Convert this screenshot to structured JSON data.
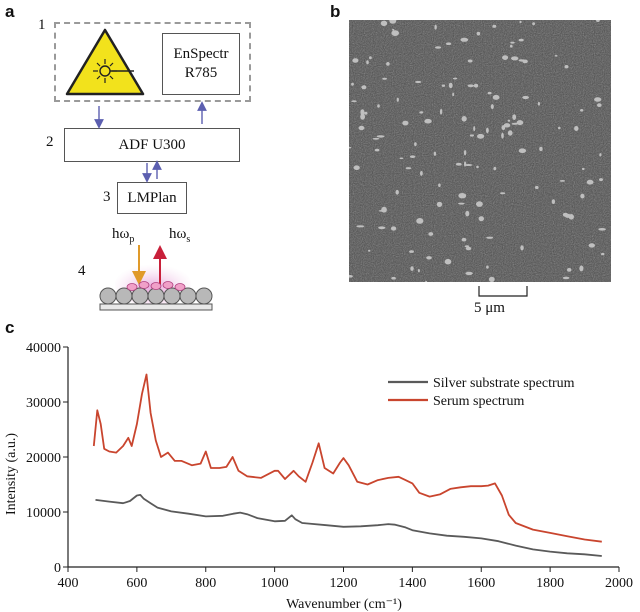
{
  "panels": {
    "a": "a",
    "b": "b",
    "c": "c"
  },
  "schematic": {
    "step_numbers": [
      "1",
      "2",
      "3",
      "4"
    ],
    "spectrometer_label": "EnSpectr\nR785",
    "adf_label": "ADF U300",
    "objective_label": "LMPlan",
    "photon_in": "hω",
    "photon_in_sub": "p",
    "photon_out": "hω",
    "photon_out_sub": "s",
    "laser_icon": "laser-warning-icon"
  },
  "micrograph": {
    "scale_bar_label": "5 μm"
  },
  "colors": {
    "silver": "#5a5a5a",
    "serum": "#c9452e",
    "laser_yellow": "#f2e21c"
  },
  "chart_data": {
    "type": "line",
    "xlabel": "Wavenumber (cm⁻¹)",
    "ylabel": "Intensity (a.u.)",
    "xlim": [
      400,
      2000
    ],
    "ylim": [
      0,
      40000
    ],
    "x_ticks": [
      400,
      600,
      800,
      1000,
      1200,
      1400,
      1600,
      1800,
      2000
    ],
    "y_ticks": [
      0,
      10000,
      20000,
      30000,
      40000
    ],
    "legend_position": "top-right",
    "grid": false,
    "series": [
      {
        "name": "Silver substrate spectrum",
        "color": "#5a5a5a",
        "x": [
          480,
          520,
          560,
          580,
          600,
          610,
          620,
          640,
          660,
          700,
          750,
          800,
          850,
          880,
          900,
          920,
          950,
          1000,
          1030,
          1050,
          1060,
          1080,
          1100,
          1150,
          1200,
          1250,
          1300,
          1330,
          1350,
          1380,
          1400,
          1450,
          1500,
          1550,
          1600,
          1650,
          1700,
          1750,
          1800,
          1850,
          1900,
          1950
        ],
        "y": [
          12200,
          11900,
          11600,
          12000,
          13000,
          13100,
          12400,
          11600,
          10800,
          10100,
          9700,
          9200,
          9300,
          9700,
          9900,
          9600,
          8900,
          8300,
          8400,
          9400,
          8700,
          8000,
          7900,
          7600,
          7300,
          7400,
          7600,
          7800,
          7700,
          7200,
          6700,
          6100,
          5700,
          5500,
          5200,
          4700,
          3900,
          3200,
          2800,
          2500,
          2300,
          2000
        ]
      },
      {
        "name": "Serum spectrum",
        "color": "#c9452e",
        "x": [
          475,
          485,
          495,
          505,
          520,
          540,
          560,
          575,
          585,
          600,
          615,
          628,
          640,
          655,
          670,
          690,
          710,
          730,
          760,
          785,
          800,
          815,
          840,
          860,
          878,
          895,
          920,
          960,
          1000,
          1010,
          1030,
          1055,
          1070,
          1090,
          1110,
          1128,
          1145,
          1170,
          1190,
          1200,
          1215,
          1240,
          1270,
          1300,
          1330,
          1360,
          1380,
          1400,
          1420,
          1450,
          1480,
          1510,
          1540,
          1570,
          1600,
          1620,
          1640,
          1660,
          1680,
          1700,
          1750,
          1800,
          1850,
          1900,
          1950
        ],
        "y": [
          22000,
          28500,
          26000,
          21500,
          21000,
          20800,
          22000,
          23500,
          22000,
          26000,
          31500,
          35000,
          28000,
          23000,
          20000,
          20800,
          19300,
          19300,
          18500,
          18800,
          21000,
          18000,
          18000,
          18200,
          20000,
          17500,
          16500,
          16200,
          17500,
          17500,
          16000,
          17500,
          16500,
          15500,
          19000,
          22500,
          18000,
          17000,
          19000,
          19800,
          18500,
          15500,
          15000,
          15800,
          16200,
          16400,
          15800,
          15200,
          13500,
          12800,
          13200,
          14200,
          14500,
          14700,
          14700,
          14800,
          15200,
          13000,
          9500,
          8000,
          6800,
          6200,
          5600,
          5000,
          4600
        ]
      }
    ]
  }
}
